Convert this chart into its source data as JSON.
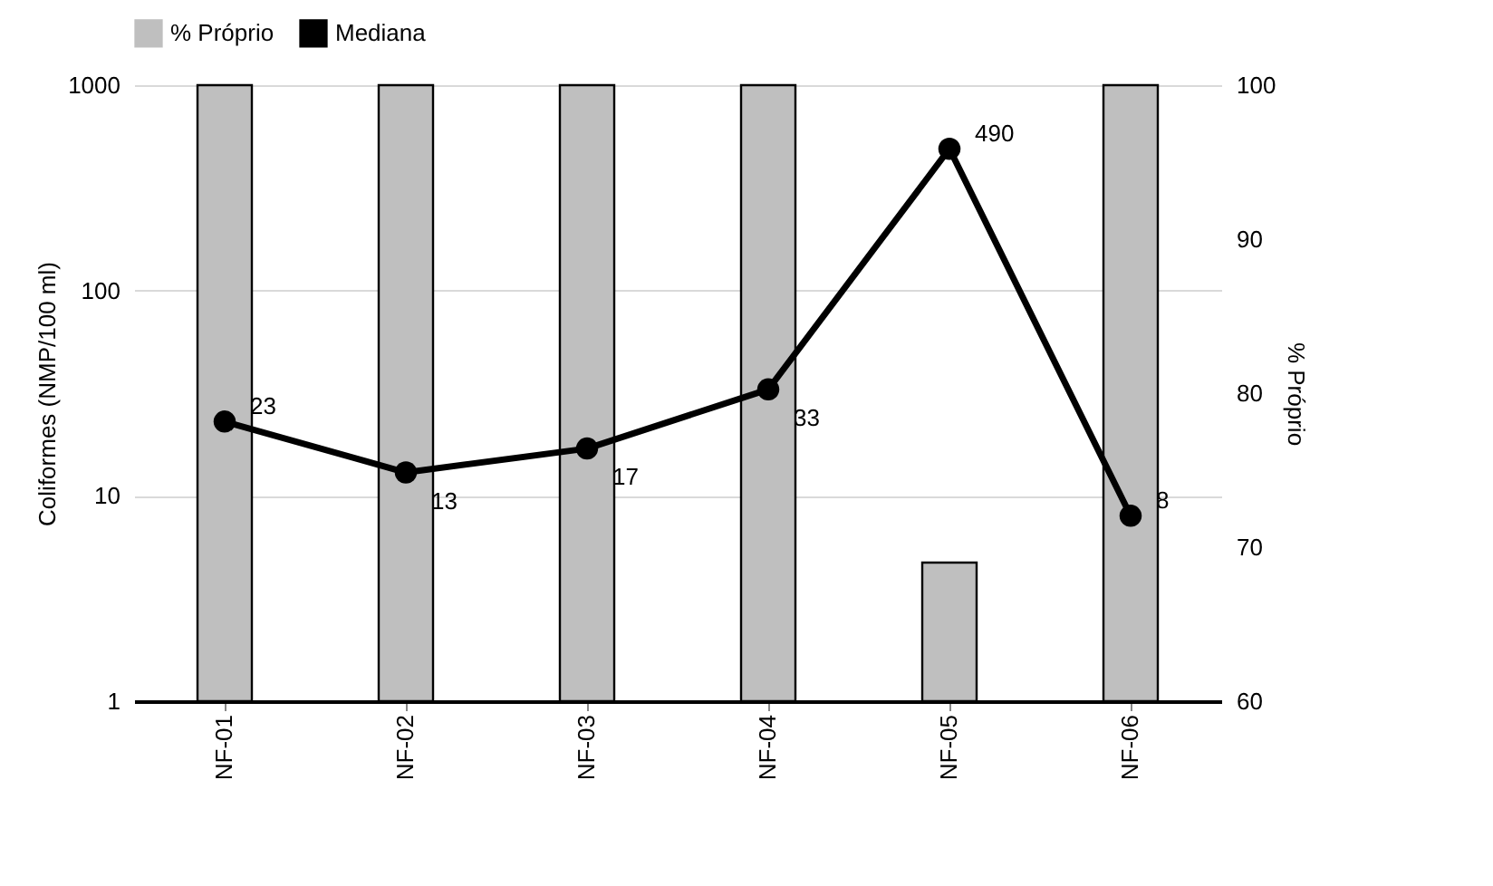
{
  "chart_data": {
    "type": "bar",
    "ylabel": "Coliformes (NMP/100 ml)",
    "y2label": "% Próprio",
    "categories": [
      "NF-01",
      "NF-02",
      "NF-03",
      "NF-04",
      "NF-05",
      "NF-06"
    ],
    "series": [
      {
        "name": "% Próprio",
        "axis": "y2",
        "color": "#bfbfbf",
        "values": [
          100,
          100,
          100,
          100,
          69,
          100
        ]
      },
      {
        "name": "Mediana",
        "type": "line",
        "color": "#000000",
        "values": [
          23,
          13,
          17,
          33,
          490,
          8
        ],
        "value_labels": [
          "23",
          "13",
          "17",
          "33",
          "490",
          "8"
        ]
      }
    ],
    "log": "y",
    "ylim": [
      1,
      1000
    ],
    "yticks": [
      1,
      10,
      100,
      1000
    ],
    "y2lim": [
      60,
      100
    ],
    "y2ticks": [
      60,
      70,
      80,
      90,
      100
    ],
    "grid": "y",
    "legend": "top",
    "marker": "circle",
    "line_style": "solid"
  }
}
